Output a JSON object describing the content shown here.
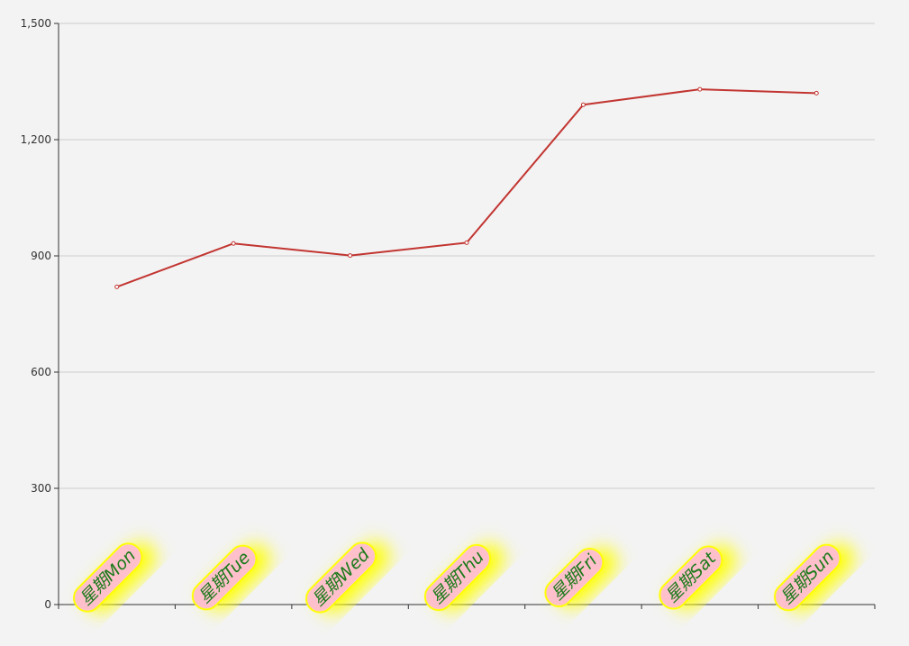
{
  "chart_data": {
    "type": "line",
    "categories": [
      "星期Mon",
      "星期Tue",
      "星期Wed",
      "星期Thu",
      "星期Fri",
      "星期Sat",
      "星期Sun"
    ],
    "series": [
      {
        "values": [
          820,
          932,
          901,
          934,
          1290,
          1330,
          1320
        ]
      }
    ],
    "y_ticks": [
      "0",
      "300",
      "600",
      "900",
      "1,200",
      "1,500"
    ],
    "ylim": [
      0,
      1500
    ],
    "grid": true,
    "legend": "none",
    "title": "",
    "xlabel": "",
    "ylabel": "",
    "colors": {
      "line": "#c23531",
      "grid": "#cccccc",
      "axis": "#333333",
      "label_text": "#1b7a1b",
      "label_fill": "#ffc0cb",
      "label_border": "#ffff00",
      "label_glow": "#ffff00",
      "background": "#f3f3f3"
    }
  }
}
